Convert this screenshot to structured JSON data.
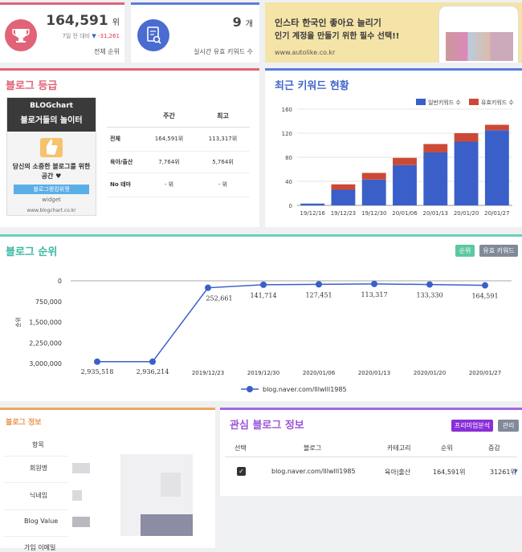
{
  "rank_card": {
    "value": "164,591",
    "unit": "위",
    "compare_label": "7일 전 대비",
    "change": "-31,261",
    "label": "전체 순위"
  },
  "keyword_card": {
    "value": "9",
    "unit": "개",
    "label": "실시간 유효 키워드 수"
  },
  "ad": {
    "line1": "인스타 한국인 좋아요 늘리기",
    "line2": "인기 계정을 만들기 위한 필수 선택!!",
    "url": "www.autolike.co.kr"
  },
  "blog_grade": {
    "title": "블로그 등급",
    "widget": {
      "logo": "BLOGchart",
      "heading": "블로거들의 놀이터",
      "text": "당신의 소중한 블로그를 위한 공간 ♥",
      "button": "블로그랭킹위젯",
      "sub": "widget",
      "url": "www.blogchart.co.kr"
    },
    "headers": [
      "",
      "주간",
      "최고"
    ],
    "rows": [
      [
        "전체",
        "164,591위",
        "113,317위"
      ],
      [
        "육아/출산",
        "7,764위",
        "5,764위"
      ],
      [
        "No 테마",
        "- 위",
        "- 위"
      ]
    ]
  },
  "recent_keywords": {
    "title": "최근 키워드 현황"
  },
  "blog_rank": {
    "title": "블로그 순위",
    "btn_rank": "순위",
    "btn_keyword": "유효 키워드",
    "legend": "blog.naver.com/lllwlll1985"
  },
  "blog_info": {
    "title": "블로그 정보",
    "rows": [
      "항목",
      "회원명",
      "닉네임",
      "Blog Value",
      "가입 이메일"
    ]
  },
  "interest_blog": {
    "title": "관심 블로그 정보",
    "btn_premium": "프리미엄분석",
    "btn_manage": "관리",
    "headers": [
      "선택",
      "블로그",
      "카테고리",
      "순위",
      "증감"
    ],
    "row": {
      "blog": "blog.naver.com/lllwlll1985",
      "category": "육아|출산",
      "rank": "164,591위",
      "change": "31261위"
    }
  },
  "colors": {
    "pink": "#e06377",
    "blue": "#5c7cdb",
    "teal": "#6ccfc0",
    "orange": "#f0a561",
    "purple": "#a466e0",
    "bar_normal": "#3b5fc9",
    "bar_valid": "#cc4a35",
    "line": "#3b5fc9"
  },
  "chart_data": [
    {
      "type": "bar",
      "legend": [
        "일반키워드 수",
        "유효키워드 수"
      ],
      "legend_position": "top-right",
      "categories": [
        "19/12/16",
        "19/12/23",
        "19/12/30",
        "20/01/06",
        "20/01/13",
        "20/01/20",
        "20/01/27"
      ],
      "series": [
        {
          "name": "일반키워드 수",
          "values": [
            3,
            26,
            43,
            67,
            88,
            106,
            125
          ]
        },
        {
          "name": "유효키워드 수",
          "values": [
            0,
            9,
            11,
            12,
            14,
            14,
            9
          ]
        }
      ],
      "stacked": true,
      "ylim": [
        0,
        160
      ],
      "yticks": [
        0,
        40,
        80,
        120,
        160
      ],
      "grid": true
    },
    {
      "type": "line",
      "ylabel": "순위",
      "y_reversed": true,
      "ylim": [
        0,
        3000000
      ],
      "yticks": [
        "0",
        "750,000",
        "1,500,000",
        "2,250,000",
        "3,000,000"
      ],
      "x": [
        "",
        "",
        "2019/12/23",
        "2019/12/30",
        "2020/01/06",
        "2020/01/13",
        "2020/01/20",
        "2020/01/27"
      ],
      "series": [
        {
          "name": "blog.naver.com/lllwlll1985",
          "values": [
            2935518,
            2936214,
            252661,
            141714,
            127451,
            113317,
            133330,
            164591
          ],
          "labels": [
            "2,935,518",
            "2,936,214",
            "252,661",
            "141,714",
            "127,451",
            "113,317",
            "133,330",
            "164,591"
          ]
        }
      ]
    }
  ]
}
